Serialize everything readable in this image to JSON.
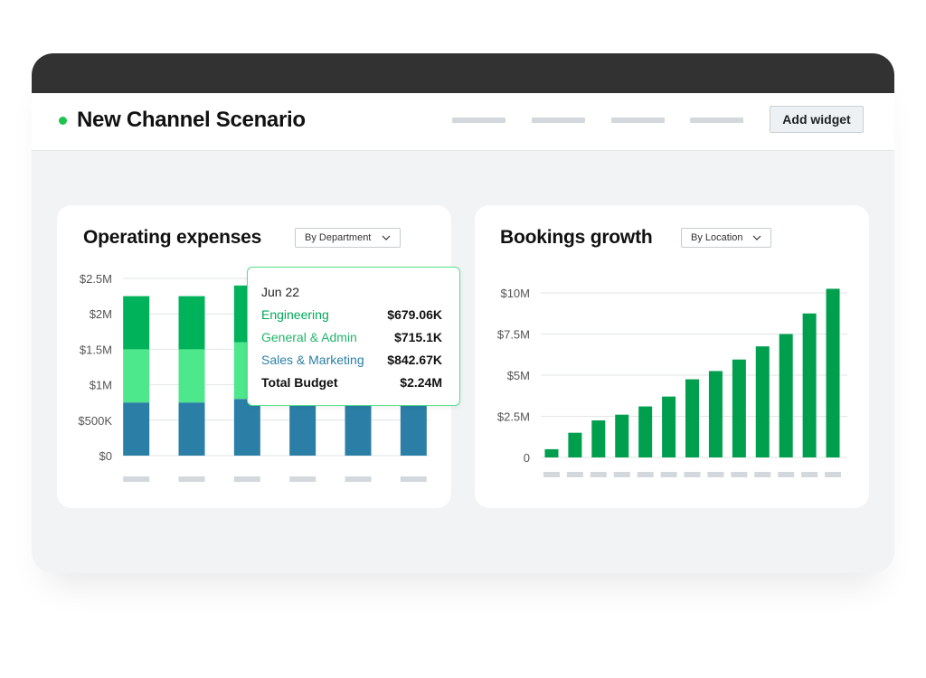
{
  "header": {
    "title": "New Channel Scenario",
    "add_widget_label": "Add widget"
  },
  "colors": {
    "accent_green": "#1cc34d",
    "engineering": "#00b35a",
    "general_admin": "#4de88c",
    "sales_marketing": "#2b7fa6",
    "bookings_bar": "#009f4d"
  },
  "operating_expenses": {
    "title": "Operating expenses",
    "dropdown_label": "By Department",
    "tooltip": {
      "date": "Jun 22",
      "rows": [
        {
          "label": "Engineering",
          "value": "$679.06K",
          "color": "#00a85a"
        },
        {
          "label": "General & Admin",
          "value": "$715.1K",
          "color": "#22b56a"
        },
        {
          "label": "Sales & Marketing",
          "value": "$842.67K",
          "color": "#2b7fa6"
        }
      ],
      "total_label": "Total Budget",
      "total_value": "$2.24M"
    }
  },
  "bookings_growth": {
    "title": "Bookings growth",
    "dropdown_label": "By Location"
  },
  "chart_data": [
    {
      "type": "bar",
      "stacked": true,
      "title": "Operating expenses",
      "categories": [
        "",
        "",
        "",
        "",
        "",
        ""
      ],
      "series": [
        {
          "name": "Sales & Marketing",
          "color": "#2b7fa6",
          "values": [
            0.75,
            0.75,
            0.8,
            0.75,
            0.75,
            0.75
          ]
        },
        {
          "name": "General & Admin",
          "color": "#4de88c",
          "values": [
            0.75,
            0.75,
            0.8,
            0,
            0,
            0
          ]
        },
        {
          "name": "Engineering",
          "color": "#00b35a",
          "values": [
            0.75,
            0.75,
            0.8,
            0,
            0,
            0
          ]
        }
      ],
      "ylim": [
        0,
        2.5
      ],
      "yticks": [
        0,
        0.5,
        1,
        1.5,
        2,
        2.5
      ],
      "ytick_labels": [
        "$0",
        "$500K",
        "$1M",
        "$1.5M",
        "$2M",
        "$2.5M"
      ],
      "grid": true
    },
    {
      "type": "bar",
      "title": "Bookings growth",
      "categories": [
        "",
        "",
        "",
        "",
        "",
        "",
        "",
        "",
        "",
        "",
        "",
        "",
        ""
      ],
      "series": [
        {
          "color": "#009f4d",
          "values": [
            0.5,
            1.5,
            2.25,
            2.6,
            3.1,
            3.7,
            4.75,
            5.25,
            5.95,
            6.75,
            7.5,
            8.75,
            10.25
          ]
        }
      ],
      "ylim": [
        0,
        10
      ],
      "yticks": [
        0,
        2.5,
        5,
        7.5,
        10
      ],
      "ytick_labels": [
        "0",
        "$2.5M",
        "$5M",
        "$7.5M",
        "$10M"
      ],
      "grid": true
    }
  ]
}
